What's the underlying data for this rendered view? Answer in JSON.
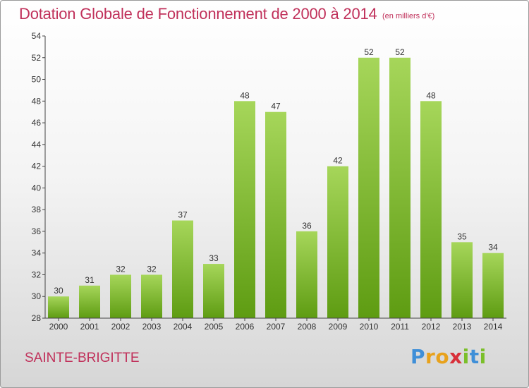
{
  "header": {
    "title": "Dotation Globale de Fonctionnement de 2000 à 2014",
    "unit": "(en milliers d'€)"
  },
  "footer": {
    "commune": "SAINTE-BRIGITTE",
    "logo_text": "Proxiti",
    "logo_letters": [
      "P",
      "r",
      "o",
      "x",
      "i",
      "t",
      "i"
    ],
    "logo_colors": [
      "#3f8fd8",
      "#e8a21c",
      "#e8a21c",
      "#d8303a",
      "#7bbf2a",
      "#3f8fd8",
      "#7bbf2a"
    ]
  },
  "colors": {
    "accent": "#c0305a",
    "bar_top": "#a6d65a",
    "bar_bottom": "#5e9c12",
    "axis": "#444444"
  },
  "chart_data": {
    "type": "bar",
    "title": "Dotation Globale de Fonctionnement de 2000 à 2014",
    "subtitle": "(en milliers d'€)",
    "categories": [
      "2000",
      "2001",
      "2002",
      "2003",
      "2004",
      "2005",
      "2006",
      "2007",
      "2008",
      "2009",
      "2010",
      "2011",
      "2012",
      "2013",
      "2014"
    ],
    "values": [
      30,
      31,
      32,
      32,
      37,
      33,
      48,
      47,
      36,
      42,
      52,
      52,
      48,
      35,
      34
    ],
    "data_labels": [
      "30",
      "31",
      "32",
      "32",
      "37",
      "33",
      "48",
      "47",
      "36",
      "42",
      "52",
      "52",
      "48",
      "35",
      "34"
    ],
    "ylim": [
      28,
      54
    ],
    "yticks": [
      28,
      30,
      32,
      34,
      36,
      38,
      40,
      42,
      44,
      46,
      48,
      50,
      52,
      54
    ],
    "grid": false,
    "xlabel": "",
    "ylabel": ""
  }
}
